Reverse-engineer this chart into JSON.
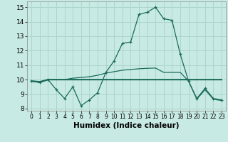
{
  "xlabel": "Humidex (Indice chaleur)",
  "xlim": [
    -0.5,
    23.5
  ],
  "ylim": [
    7.85,
    15.4
  ],
  "yticks": [
    8,
    9,
    10,
    11,
    12,
    13,
    14,
    15
  ],
  "xticks": [
    0,
    1,
    2,
    3,
    4,
    5,
    6,
    7,
    8,
    9,
    10,
    11,
    12,
    13,
    14,
    15,
    16,
    17,
    18,
    19,
    20,
    21,
    22,
    23
  ],
  "bg_color": "#c8eae4",
  "grid_color": "#aed4cc",
  "line_color": "#1a6b5a",
  "line1_x": [
    0,
    1,
    2,
    3,
    4,
    5,
    6,
    7,
    8,
    9,
    10,
    11,
    12,
    13,
    14,
    15,
    16,
    17,
    18,
    19,
    20,
    21,
    22,
    23
  ],
  "line1_y": [
    9.9,
    9.8,
    10.0,
    9.3,
    8.7,
    9.5,
    8.2,
    8.6,
    9.1,
    10.5,
    11.3,
    12.5,
    12.6,
    14.5,
    14.65,
    15.0,
    14.2,
    14.1,
    11.75,
    9.9,
    8.7,
    9.4,
    8.7,
    8.6
  ],
  "line2_x": [
    0,
    1,
    2,
    3,
    4,
    5,
    6,
    7,
    8,
    9,
    10,
    11,
    12,
    13,
    14,
    15,
    16,
    17,
    18,
    19,
    20,
    21,
    22,
    23
  ],
  "line2_y": [
    9.9,
    9.85,
    10.0,
    10.0,
    10.0,
    10.0,
    10.0,
    10.0,
    10.0,
    10.0,
    10.0,
    10.0,
    10.0,
    10.0,
    10.0,
    10.0,
    10.0,
    10.0,
    10.0,
    10.0,
    10.0,
    10.0,
    10.0,
    10.0
  ],
  "line3_x": [
    0,
    1,
    2,
    3,
    4,
    5,
    6,
    7,
    8,
    9,
    10,
    11,
    12,
    13,
    14,
    15,
    16,
    17,
    18,
    19,
    20,
    21,
    22,
    23
  ],
  "line3_y": [
    9.9,
    9.8,
    10.0,
    10.0,
    10.0,
    10.1,
    10.15,
    10.2,
    10.3,
    10.45,
    10.55,
    10.65,
    10.7,
    10.75,
    10.78,
    10.8,
    10.5,
    10.5,
    10.5,
    9.9,
    8.65,
    9.3,
    8.65,
    8.55
  ]
}
